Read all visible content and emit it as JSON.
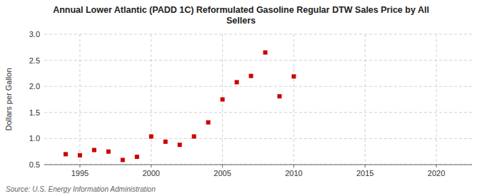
{
  "chart_data": {
    "type": "scatter",
    "title": "Annual Lower Atlantic (PADD 1C) Reformulated Gasoline Regular DTW Sales Price by All\nSellers",
    "y_label": "Dollars per Gallon",
    "source": "Source: U.S. Energy Information Administration",
    "x": [
      1994,
      1995,
      1996,
      1997,
      1998,
      1999,
      2000,
      2001,
      2002,
      2003,
      2004,
      2005,
      2006,
      2007,
      2008,
      2009,
      2010
    ],
    "values": [
      0.7,
      0.68,
      0.78,
      0.75,
      0.59,
      0.65,
      1.04,
      0.94,
      0.88,
      1.04,
      1.31,
      1.75,
      2.08,
      2.2,
      2.65,
      1.81,
      2.19
    ],
    "color": "#cc0000",
    "marker": "square",
    "xlim": [
      1992.5,
      2022.5
    ],
    "ylim": [
      0.5,
      3.0
    ],
    "xticks": [
      1995,
      2000,
      2005,
      2010,
      2015,
      2020
    ],
    "yticks": [
      0.5,
      {
        "value": 1.0,
        "label": "1.0"
      },
      1.5,
      {
        "value": 2.0,
        "label": "2.0"
      },
      2.5,
      {
        "value": 3.0,
        "label": "3.0"
      }
    ],
    "grid": true
  }
}
